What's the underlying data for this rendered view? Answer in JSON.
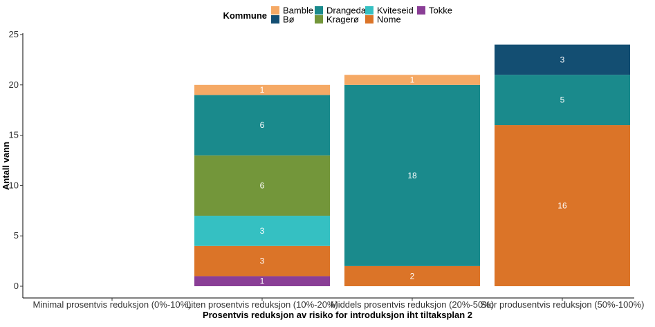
{
  "chart_data": {
    "type": "bar",
    "stacked": true,
    "orientation": "vertical",
    "xlabel": "Prosentvis reduksjon av risiko for introduksjon iht tiltaksplan 2",
    "ylabel": "Antall vann",
    "ylim": [
      0,
      25
    ],
    "yticks": [
      0,
      5,
      10,
      15,
      20,
      25
    ],
    "grid": false,
    "legend": {
      "title": "Kommune",
      "position": "top"
    },
    "categories": [
      "Minimal prosentvis reduksjon (0%-10%)",
      "Liten prosentvis reduksjon (10%-20%)",
      "Middels prosentvis reduksjon (20%-50%)",
      "Stor produsentvis reduksjon (50%-100%)"
    ],
    "series": [
      {
        "name": "Tokke",
        "color": "#8A3E96",
        "values": [
          0,
          1,
          0,
          0
        ]
      },
      {
        "name": "Nome",
        "color": "#DB7428",
        "values": [
          0,
          3,
          2,
          16
        ]
      },
      {
        "name": "Kviteseid",
        "color": "#35C0C2",
        "values": [
          0,
          3,
          0,
          0
        ]
      },
      {
        "name": "Kragerø",
        "color": "#73963A",
        "values": [
          0,
          6,
          0,
          0
        ]
      },
      {
        "name": "Drangedal",
        "color": "#1A8A8C",
        "values": [
          0,
          6,
          18,
          5
        ]
      },
      {
        "name": "Bø",
        "color": "#134E72",
        "values": [
          0,
          0,
          0,
          3
        ]
      },
      {
        "name": "Bamble",
        "color": "#F5A965",
        "values": [
          0,
          1,
          1,
          0
        ]
      }
    ],
    "legend_order": [
      "Bamble",
      "Bø",
      "Drangedal",
      "Kragerø",
      "Kviteseid",
      "Nome",
      "Tokke"
    ]
  }
}
